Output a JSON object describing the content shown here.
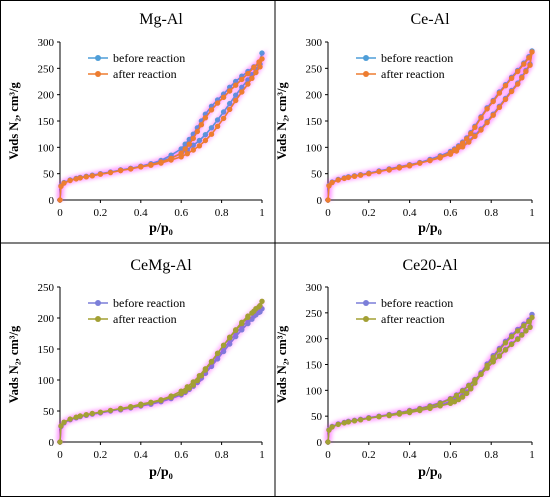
{
  "figure": {
    "border_color": "#000000",
    "pink_halo_color": "#ff00ff"
  },
  "chart_data": [
    {
      "type": "line",
      "title": "Mg-Al",
      "xlabel": "p/p₀",
      "ylabel": "Vads N₂, cm³/g",
      "xlim": [
        0,
        1
      ],
      "ylim": [
        0,
        300
      ],
      "xticks": [
        "0",
        "0.2",
        "0.4",
        "0.6",
        "0.8",
        "1"
      ],
      "yticks": [
        "0",
        "50",
        "100",
        "150",
        "200",
        "250",
        "300"
      ],
      "legend_position": "top-left",
      "series": [
        {
          "name": "before reaction",
          "color": "#4f9ed8",
          "x": [
            0,
            0.005,
            0.02,
            0.05,
            0.08,
            0.1,
            0.13,
            0.16,
            0.2,
            0.25,
            0.3,
            0.35,
            0.4,
            0.45,
            0.5,
            0.55,
            0.6,
            0.63,
            0.66,
            0.69,
            0.72,
            0.75,
            0.78,
            0.81,
            0.84,
            0.87,
            0.9,
            0.93,
            0.95,
            0.97,
            0.99,
            1.0,
            0.985,
            0.96,
            0.93,
            0.9,
            0.87,
            0.84,
            0.81,
            0.78,
            0.75,
            0.72,
            0.7,
            0.68,
            0.66,
            0.64,
            0.62,
            0.6,
            0.55,
            0.5,
            0.45,
            0.4,
            0.35,
            0.3
          ],
          "y": [
            0,
            27,
            33,
            38,
            41,
            43,
            45,
            47,
            50,
            53,
            57,
            60,
            64,
            68,
            73,
            80,
            88,
            95,
            104,
            113,
            124,
            137,
            152,
            167,
            183,
            199,
            214,
            228,
            238,
            248,
            258,
            279,
            258,
            253,
            244,
            235,
            225,
            214,
            201,
            190,
            178,
            163,
            150,
            137,
            125,
            115,
            106,
            97,
            85,
            75,
            69,
            64,
            60,
            57
          ]
        },
        {
          "name": "after reaction",
          "color": "#ed7d31",
          "x": [
            0,
            0.005,
            0.02,
            0.05,
            0.08,
            0.1,
            0.13,
            0.16,
            0.2,
            0.25,
            0.3,
            0.35,
            0.4,
            0.45,
            0.5,
            0.55,
            0.6,
            0.63,
            0.66,
            0.69,
            0.72,
            0.75,
            0.78,
            0.81,
            0.84,
            0.87,
            0.9,
            0.93,
            0.95,
            0.97,
            0.99,
            1.0,
            0.985,
            0.96,
            0.93,
            0.9,
            0.87,
            0.84,
            0.81,
            0.78,
            0.75,
            0.72,
            0.7,
            0.68,
            0.66,
            0.64,
            0.62,
            0.6,
            0.55,
            0.5,
            0.45,
            0.4,
            0.35,
            0.3
          ],
          "y": [
            0,
            26,
            32,
            37,
            40,
            42,
            44,
            46,
            49,
            52,
            56,
            59,
            63,
            66,
            70,
            76,
            82,
            88,
            95,
            103,
            113,
            125,
            140,
            155,
            172,
            189,
            205,
            220,
            231,
            242,
            253,
            268,
            262,
            252,
            240,
            229,
            218,
            207,
            195,
            184,
            171,
            156,
            143,
            130,
            117,
            106,
            97,
            89,
            79,
            72,
            67,
            63,
            59,
            56
          ]
        }
      ]
    },
    {
      "type": "line",
      "title": "Ce-Al",
      "xlabel": "p/p₀",
      "ylabel": "Vads N₂, cm³/g",
      "xlim": [
        0,
        1
      ],
      "ylim": [
        0,
        300
      ],
      "xticks": [
        "0",
        "0.2",
        "0.4",
        "0.6",
        "0.8",
        "1"
      ],
      "yticks": [
        "0",
        "50",
        "100",
        "150",
        "200",
        "250",
        "300"
      ],
      "legend_position": "top-left",
      "series": [
        {
          "name": "before reaction",
          "color": "#4f9ed8",
          "x": [
            0,
            0.005,
            0.02,
            0.05,
            0.08,
            0.1,
            0.13,
            0.16,
            0.2,
            0.25,
            0.3,
            0.35,
            0.4,
            0.45,
            0.5,
            0.55,
            0.6,
            0.63,
            0.66,
            0.69,
            0.72,
            0.75,
            0.78,
            0.81,
            0.84,
            0.87,
            0.9,
            0.93,
            0.95,
            0.97,
            0.99,
            1.0,
            0.985,
            0.96,
            0.93,
            0.9,
            0.87,
            0.84,
            0.81,
            0.78,
            0.75,
            0.72,
            0.7,
            0.68,
            0.66,
            0.64,
            0.62,
            0.6,
            0.55,
            0.5,
            0.45,
            0.4,
            0.35,
            0.3
          ],
          "y": [
            0,
            28,
            34,
            39,
            42,
            44,
            46,
            48,
            51,
            55,
            59,
            63,
            67,
            71,
            76,
            82,
            89,
            95,
            103,
            112,
            123,
            135,
            149,
            163,
            178,
            193,
            208,
            222,
            234,
            246,
            258,
            283,
            272,
            260,
            246,
            233,
            219,
            205,
            189,
            175,
            158,
            140,
            128,
            118,
            110,
            103,
            97,
            92,
            84,
            77,
            71,
            66,
            62,
            58
          ]
        },
        {
          "name": "after reaction",
          "color": "#ed7d31",
          "x": [
            0,
            0.005,
            0.02,
            0.05,
            0.08,
            0.1,
            0.13,
            0.16,
            0.2,
            0.25,
            0.3,
            0.35,
            0.4,
            0.45,
            0.5,
            0.55,
            0.6,
            0.63,
            0.66,
            0.69,
            0.72,
            0.75,
            0.78,
            0.81,
            0.84,
            0.87,
            0.9,
            0.93,
            0.95,
            0.97,
            0.99,
            1.0,
            0.985,
            0.96,
            0.93,
            0.9,
            0.87,
            0.84,
            0.81,
            0.78,
            0.75,
            0.72,
            0.7,
            0.68,
            0.66,
            0.64,
            0.62,
            0.6,
            0.55,
            0.5,
            0.45,
            0.4,
            0.35,
            0.3
          ],
          "y": [
            0,
            27,
            33,
            38,
            41,
            43,
            45,
            47,
            50,
            54,
            58,
            62,
            66,
            70,
            75,
            80,
            87,
            93,
            101,
            110,
            121,
            133,
            147,
            161,
            176,
            191,
            206,
            220,
            232,
            244,
            256,
            281,
            270,
            258,
            244,
            231,
            217,
            203,
            187,
            173,
            156,
            138,
            126,
            116,
            108,
            101,
            95,
            90,
            82,
            75,
            70,
            65,
            61,
            57
          ]
        }
      ]
    },
    {
      "type": "line",
      "title": "CeMg-Al",
      "xlabel": "p/p₀",
      "ylabel": "Vads N₂, cm³/g",
      "xlim": [
        0,
        1
      ],
      "ylim": [
        0,
        250
      ],
      "xticks": [
        "0",
        "0.2",
        "0.4",
        "0.6",
        "0.8",
        "1"
      ],
      "yticks": [
        "0",
        "50",
        "100",
        "150",
        "200",
        "250"
      ],
      "legend_position": "top-left",
      "series": [
        {
          "name": "before reaction",
          "color": "#7b7fd9",
          "x": [
            0,
            0.005,
            0.02,
            0.05,
            0.08,
            0.1,
            0.13,
            0.16,
            0.2,
            0.25,
            0.3,
            0.35,
            0.4,
            0.45,
            0.5,
            0.55,
            0.6,
            0.63,
            0.66,
            0.69,
            0.72,
            0.75,
            0.78,
            0.81,
            0.84,
            0.87,
            0.9,
            0.93,
            0.95,
            0.97,
            0.99,
            1.0,
            0.985,
            0.96,
            0.93,
            0.9,
            0.87,
            0.84,
            0.81,
            0.78,
            0.75,
            0.72,
            0.7,
            0.68,
            0.66,
            0.64,
            0.62,
            0.6,
            0.55,
            0.5,
            0.45,
            0.4,
            0.35,
            0.3
          ],
          "y": [
            0,
            25,
            31,
            36,
            39,
            41,
            43,
            45,
            47,
            50,
            53,
            56,
            59,
            62,
            66,
            71,
            78,
            84,
            92,
            101,
            111,
            122,
            134,
            146,
            158,
            170,
            181,
            191,
            198,
            205,
            210,
            215,
            209,
            203,
            195,
            186,
            175,
            163,
            150,
            138,
            124,
            111,
            103,
            96,
            90,
            85,
            80,
            76,
            70,
            65,
            61,
            58,
            55,
            52
          ]
        },
        {
          "name": "after reaction",
          "color": "#a3a034",
          "x": [
            0,
            0.005,
            0.02,
            0.05,
            0.08,
            0.1,
            0.13,
            0.16,
            0.2,
            0.25,
            0.3,
            0.35,
            0.4,
            0.45,
            0.5,
            0.55,
            0.6,
            0.63,
            0.66,
            0.69,
            0.72,
            0.75,
            0.78,
            0.81,
            0.84,
            0.87,
            0.9,
            0.93,
            0.95,
            0.97,
            0.99,
            1.0,
            0.985,
            0.96,
            0.93,
            0.9,
            0.87,
            0.84,
            0.81,
            0.78,
            0.75,
            0.72,
            0.7,
            0.68,
            0.66,
            0.64,
            0.62,
            0.6,
            0.55,
            0.5,
            0.45,
            0.4,
            0.35,
            0.3
          ],
          "y": [
            0,
            26,
            32,
            37,
            40,
            42,
            44,
            46,
            48,
            51,
            54,
            57,
            61,
            64,
            68,
            74,
            82,
            89,
            97,
            107,
            118,
            130,
            143,
            156,
            168,
            180,
            191,
            201,
            208,
            215,
            220,
            227,
            218,
            211,
            203,
            193,
            181,
            169,
            156,
            143,
            129,
            116,
            107,
            99,
            92,
            87,
            82,
            78,
            72,
            67,
            63,
            59,
            56,
            53
          ]
        }
      ]
    },
    {
      "type": "line",
      "title": "Ce20-Al",
      "xlabel": "p/p₀",
      "ylabel": "Vads N₂, cm³/g",
      "xlim": [
        0,
        1
      ],
      "ylim": [
        0,
        300
      ],
      "xticks": [
        "0",
        "0.2",
        "0.4",
        "0.6",
        "0.8",
        "1"
      ],
      "yticks": [
        "0",
        "50",
        "100",
        "150",
        "200",
        "250",
        "300"
      ],
      "legend_position": "top-left",
      "series": [
        {
          "name": "before reaction",
          "color": "#7b7fd9",
          "x": [
            0,
            0.005,
            0.02,
            0.05,
            0.08,
            0.1,
            0.13,
            0.16,
            0.2,
            0.25,
            0.3,
            0.35,
            0.4,
            0.45,
            0.5,
            0.55,
            0.6,
            0.63,
            0.66,
            0.69,
            0.72,
            0.75,
            0.78,
            0.81,
            0.84,
            0.87,
            0.9,
            0.93,
            0.95,
            0.97,
            0.99,
            1.0,
            0.985,
            0.96,
            0.93,
            0.9,
            0.87,
            0.84,
            0.81,
            0.78,
            0.75,
            0.72,
            0.7,
            0.68,
            0.66,
            0.64,
            0.62,
            0.6,
            0.55,
            0.5,
            0.45,
            0.4,
            0.35,
            0.3
          ],
          "y": [
            0,
            24,
            30,
            35,
            38,
            40,
            42,
            44,
            47,
            50,
            53,
            57,
            61,
            65,
            70,
            76,
            84,
            91,
            100,
            110,
            121,
            132,
            144,
            156,
            167,
            179,
            190,
            200,
            208,
            216,
            223,
            247,
            236,
            228,
            218,
            207,
            195,
            181,
            167,
            151,
            134,
            117,
            106,
            97,
            90,
            85,
            81,
            78,
            72,
            67,
            63,
            59,
            56,
            53
          ]
        },
        {
          "name": "after reaction",
          "color": "#a3a034",
          "x": [
            0,
            0.005,
            0.02,
            0.05,
            0.08,
            0.1,
            0.13,
            0.16,
            0.2,
            0.25,
            0.3,
            0.35,
            0.4,
            0.45,
            0.5,
            0.55,
            0.6,
            0.63,
            0.66,
            0.69,
            0.72,
            0.75,
            0.78,
            0.81,
            0.84,
            0.87,
            0.9,
            0.93,
            0.95,
            0.97,
            0.99,
            1.0,
            0.985,
            0.96,
            0.93,
            0.9,
            0.87,
            0.84,
            0.81,
            0.78,
            0.75,
            0.72,
            0.7,
            0.68,
            0.66,
            0.64,
            0.62,
            0.6,
            0.55,
            0.5,
            0.45,
            0.4,
            0.35,
            0.3
          ],
          "y": [
            0,
            23,
            29,
            34,
            37,
            39,
            41,
            43,
            46,
            49,
            52,
            56,
            60,
            64,
            69,
            75,
            83,
            90,
            99,
            109,
            120,
            131,
            143,
            155,
            166,
            178,
            189,
            199,
            207,
            215,
            222,
            241,
            233,
            225,
            215,
            204,
            192,
            178,
            164,
            148,
            131,
            114,
            103,
            94,
            87,
            82,
            78,
            75,
            70,
            65,
            61,
            57,
            54,
            51
          ]
        }
      ]
    }
  ]
}
